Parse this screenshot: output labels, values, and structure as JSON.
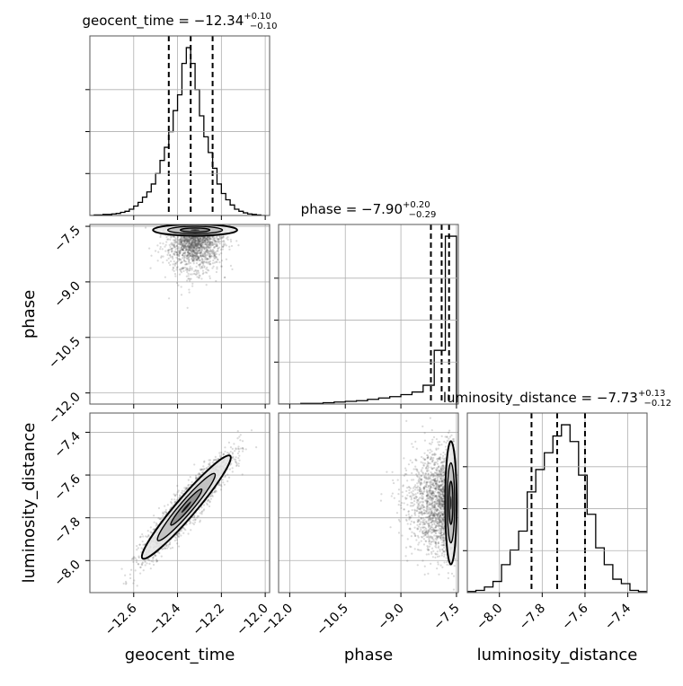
{
  "chart_data": {
    "type": "corner",
    "parameters": [
      "geocent_time",
      "phase",
      "luminosity_distance"
    ],
    "axis_labels": {
      "geocent_time": "geocent_time",
      "phase": "phase",
      "luminosity_distance": "luminosity_distance"
    },
    "titles": [
      {
        "param": "geocent_time",
        "text": "geocent_time = −12.34",
        "median": -12.34,
        "plus": "+0.10",
        "minus": "−0.10"
      },
      {
        "param": "phase",
        "text": "phase = −7.90",
        "median": -7.9,
        "plus": "+0.20",
        "minus": "−0.29"
      },
      {
        "param": "luminosity_distance",
        "text": "luminosity_distance = −7.73",
        "median": -7.73,
        "plus": "+0.13",
        "minus": "−0.12"
      }
    ],
    "ranges": {
      "geocent_time": [
        -12.8,
        -11.98
      ],
      "phase": [
        -12.3,
        -7.45
      ],
      "luminosity_distance": [
        -8.15,
        -7.31
      ]
    },
    "ticks": {
      "geocent_time": [
        -12.6,
        -12.4,
        -12.2,
        -12.0
      ],
      "phase": [
        -12.0,
        -10.5,
        -9.0,
        -7.5
      ],
      "phase_bottom": [
        -12.0,
        -10.5,
        -9.0,
        -7.5
      ],
      "luminosity_distance": [
        -8.0,
        -7.8,
        -7.6,
        -7.4
      ]
    },
    "tick_labels": {
      "geocent_time": [
        "−12.6",
        "−12.4",
        "−12.2",
        "−12.0"
      ],
      "phase": [
        "−12.0",
        "−10.5",
        "−9.0",
        "−7.5"
      ],
      "luminosity_distance": [
        "−8.0",
        "−7.8",
        "−7.6",
        "−7.4"
      ]
    },
    "quantiles": {
      "geocent_time": [
        -12.44,
        -12.34,
        -12.24
      ],
      "phase": [
        -8.19,
        -7.9,
        -7.7
      ],
      "luminosity_distance": [
        -7.85,
        -7.73,
        -7.6
      ]
    },
    "histograms": {
      "geocent_time": {
        "bin_edges": [
          -12.8,
          -12.78,
          -12.76,
          -12.74,
          -12.72,
          -12.7,
          -12.68,
          -12.66,
          -12.64,
          -12.62,
          -12.6,
          -12.58,
          -12.56,
          -12.54,
          -12.52,
          -12.5,
          -12.48,
          -12.46,
          -12.44,
          -12.42,
          -12.4,
          -12.38,
          -12.36,
          -12.34,
          -12.32,
          -12.3,
          -12.28,
          -12.26,
          -12.24,
          -12.22,
          -12.2,
          -12.18,
          -12.16,
          -12.14,
          -12.12,
          -12.1,
          -12.08,
          -12.06,
          -12.04,
          -12.02,
          -12.0
        ],
        "counts": [
          0,
          1,
          1,
          2,
          2,
          3,
          4,
          6,
          8,
          12,
          18,
          25,
          35,
          45,
          60,
          80,
          105,
          130,
          160,
          200,
          230,
          290,
          320,
          290,
          240,
          190,
          150,
          120,
          90,
          60,
          42,
          30,
          20,
          12,
          8,
          5,
          3,
          2,
          1,
          0
        ]
      },
      "phase": {
        "bin_edges": [
          -12.3,
          -12.0,
          -11.7,
          -11.4,
          -11.1,
          -10.8,
          -10.5,
          -10.2,
          -9.9,
          -9.6,
          -9.3,
          -9.0,
          -8.7,
          -8.4,
          -8.1,
          -7.8,
          -7.5
        ],
        "counts": [
          0,
          0,
          1,
          1,
          2,
          3,
          4,
          5,
          7,
          9,
          11,
          14,
          18,
          28,
          80,
          250
        ]
      },
      "luminosity_distance": {
        "bin_edges": [
          -8.15,
          -8.11,
          -8.07,
          -8.03,
          -7.99,
          -7.95,
          -7.91,
          -7.87,
          -7.83,
          -7.79,
          -7.75,
          -7.71,
          -7.67,
          -7.63,
          -7.59,
          -7.55,
          -7.51,
          -7.47,
          -7.43,
          -7.39,
          -7.35,
          -7.31
        ],
        "counts": [
          1,
          2,
          5,
          10,
          25,
          38,
          55,
          90,
          110,
          125,
          140,
          150,
          135,
          105,
          70,
          40,
          25,
          12,
          8,
          2,
          1
        ]
      }
    },
    "pairs": [
      {
        "x": "geocent_time",
        "y": "phase",
        "center": [
          -12.32,
          -7.6
        ],
        "sx": 0.06,
        "sy": 0.35,
        "rho": 0.0,
        "skew_y": "down"
      },
      {
        "x": "geocent_time",
        "y": "luminosity_distance",
        "center": [
          -12.36,
          -7.75
        ],
        "sx": 0.1,
        "sy": 0.12,
        "rho": 0.93
      },
      {
        "x": "phase",
        "y": "luminosity_distance",
        "center": [
          -7.65,
          -7.73
        ],
        "sx": 0.35,
        "sy": 0.12,
        "rho": 0.0,
        "skew_x": "left"
      }
    ],
    "quantile_line_style": "dashed",
    "grid": true,
    "colors": {
      "line": "#000000",
      "grid": "#b0b0b0",
      "points": "#555555"
    }
  }
}
